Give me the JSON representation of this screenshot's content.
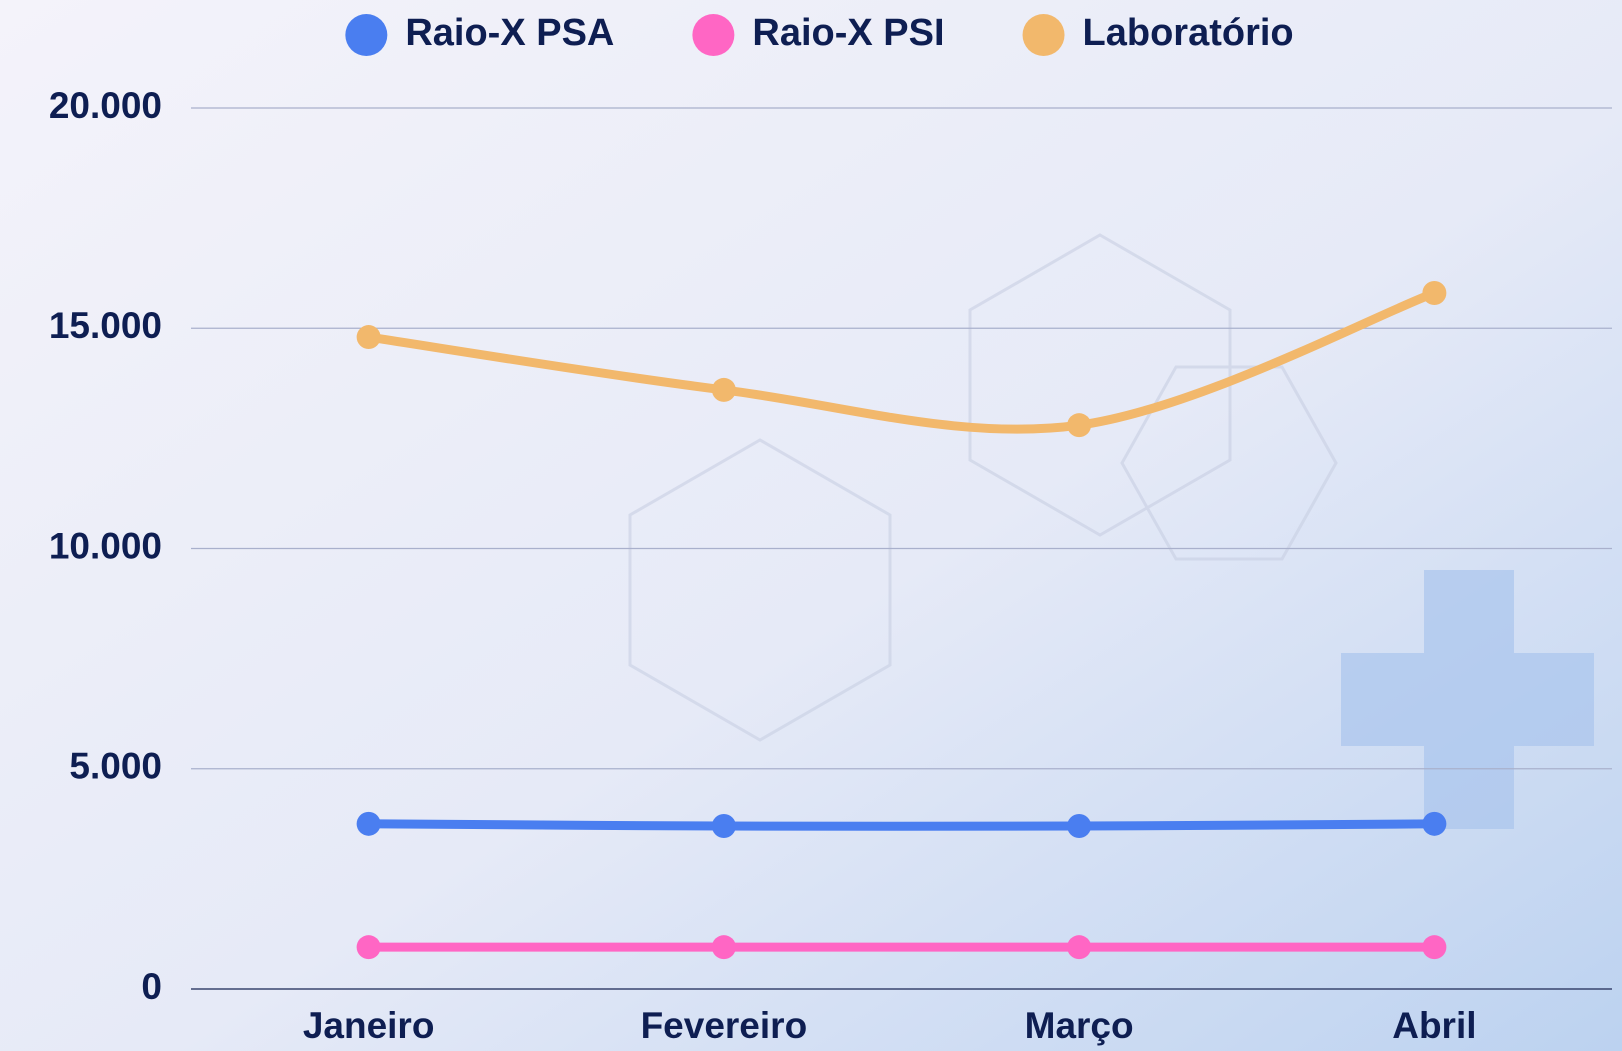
{
  "chart_data": {
    "type": "line",
    "categories": [
      "Janeiro",
      "Fevereiro",
      "Março",
      "Abril"
    ],
    "series": [
      {
        "name": "Raio-X PSA",
        "color": "#4a7ef0",
        "values": [
          3750,
          3700,
          3700,
          3750
        ]
      },
      {
        "name": "Raio-X PSI",
        "color": "#ff66c4",
        "values": [
          950,
          950,
          950,
          950
        ]
      },
      {
        "name": "Laboratório",
        "color": "#f2b86c",
        "values": [
          14800,
          13600,
          12800,
          15800
        ]
      }
    ],
    "ylim": [
      0,
      20000
    ],
    "yticks": [
      0,
      {
        "value": 5000,
        "label": "5.000"
      },
      {
        "value": 10000,
        "label": "10.000"
      },
      {
        "value": 15000,
        "label": "15.000"
      },
      {
        "value": 20000,
        "label": "20.000"
      }
    ],
    "grid": true,
    "smooth": true,
    "legend": "top"
  }
}
